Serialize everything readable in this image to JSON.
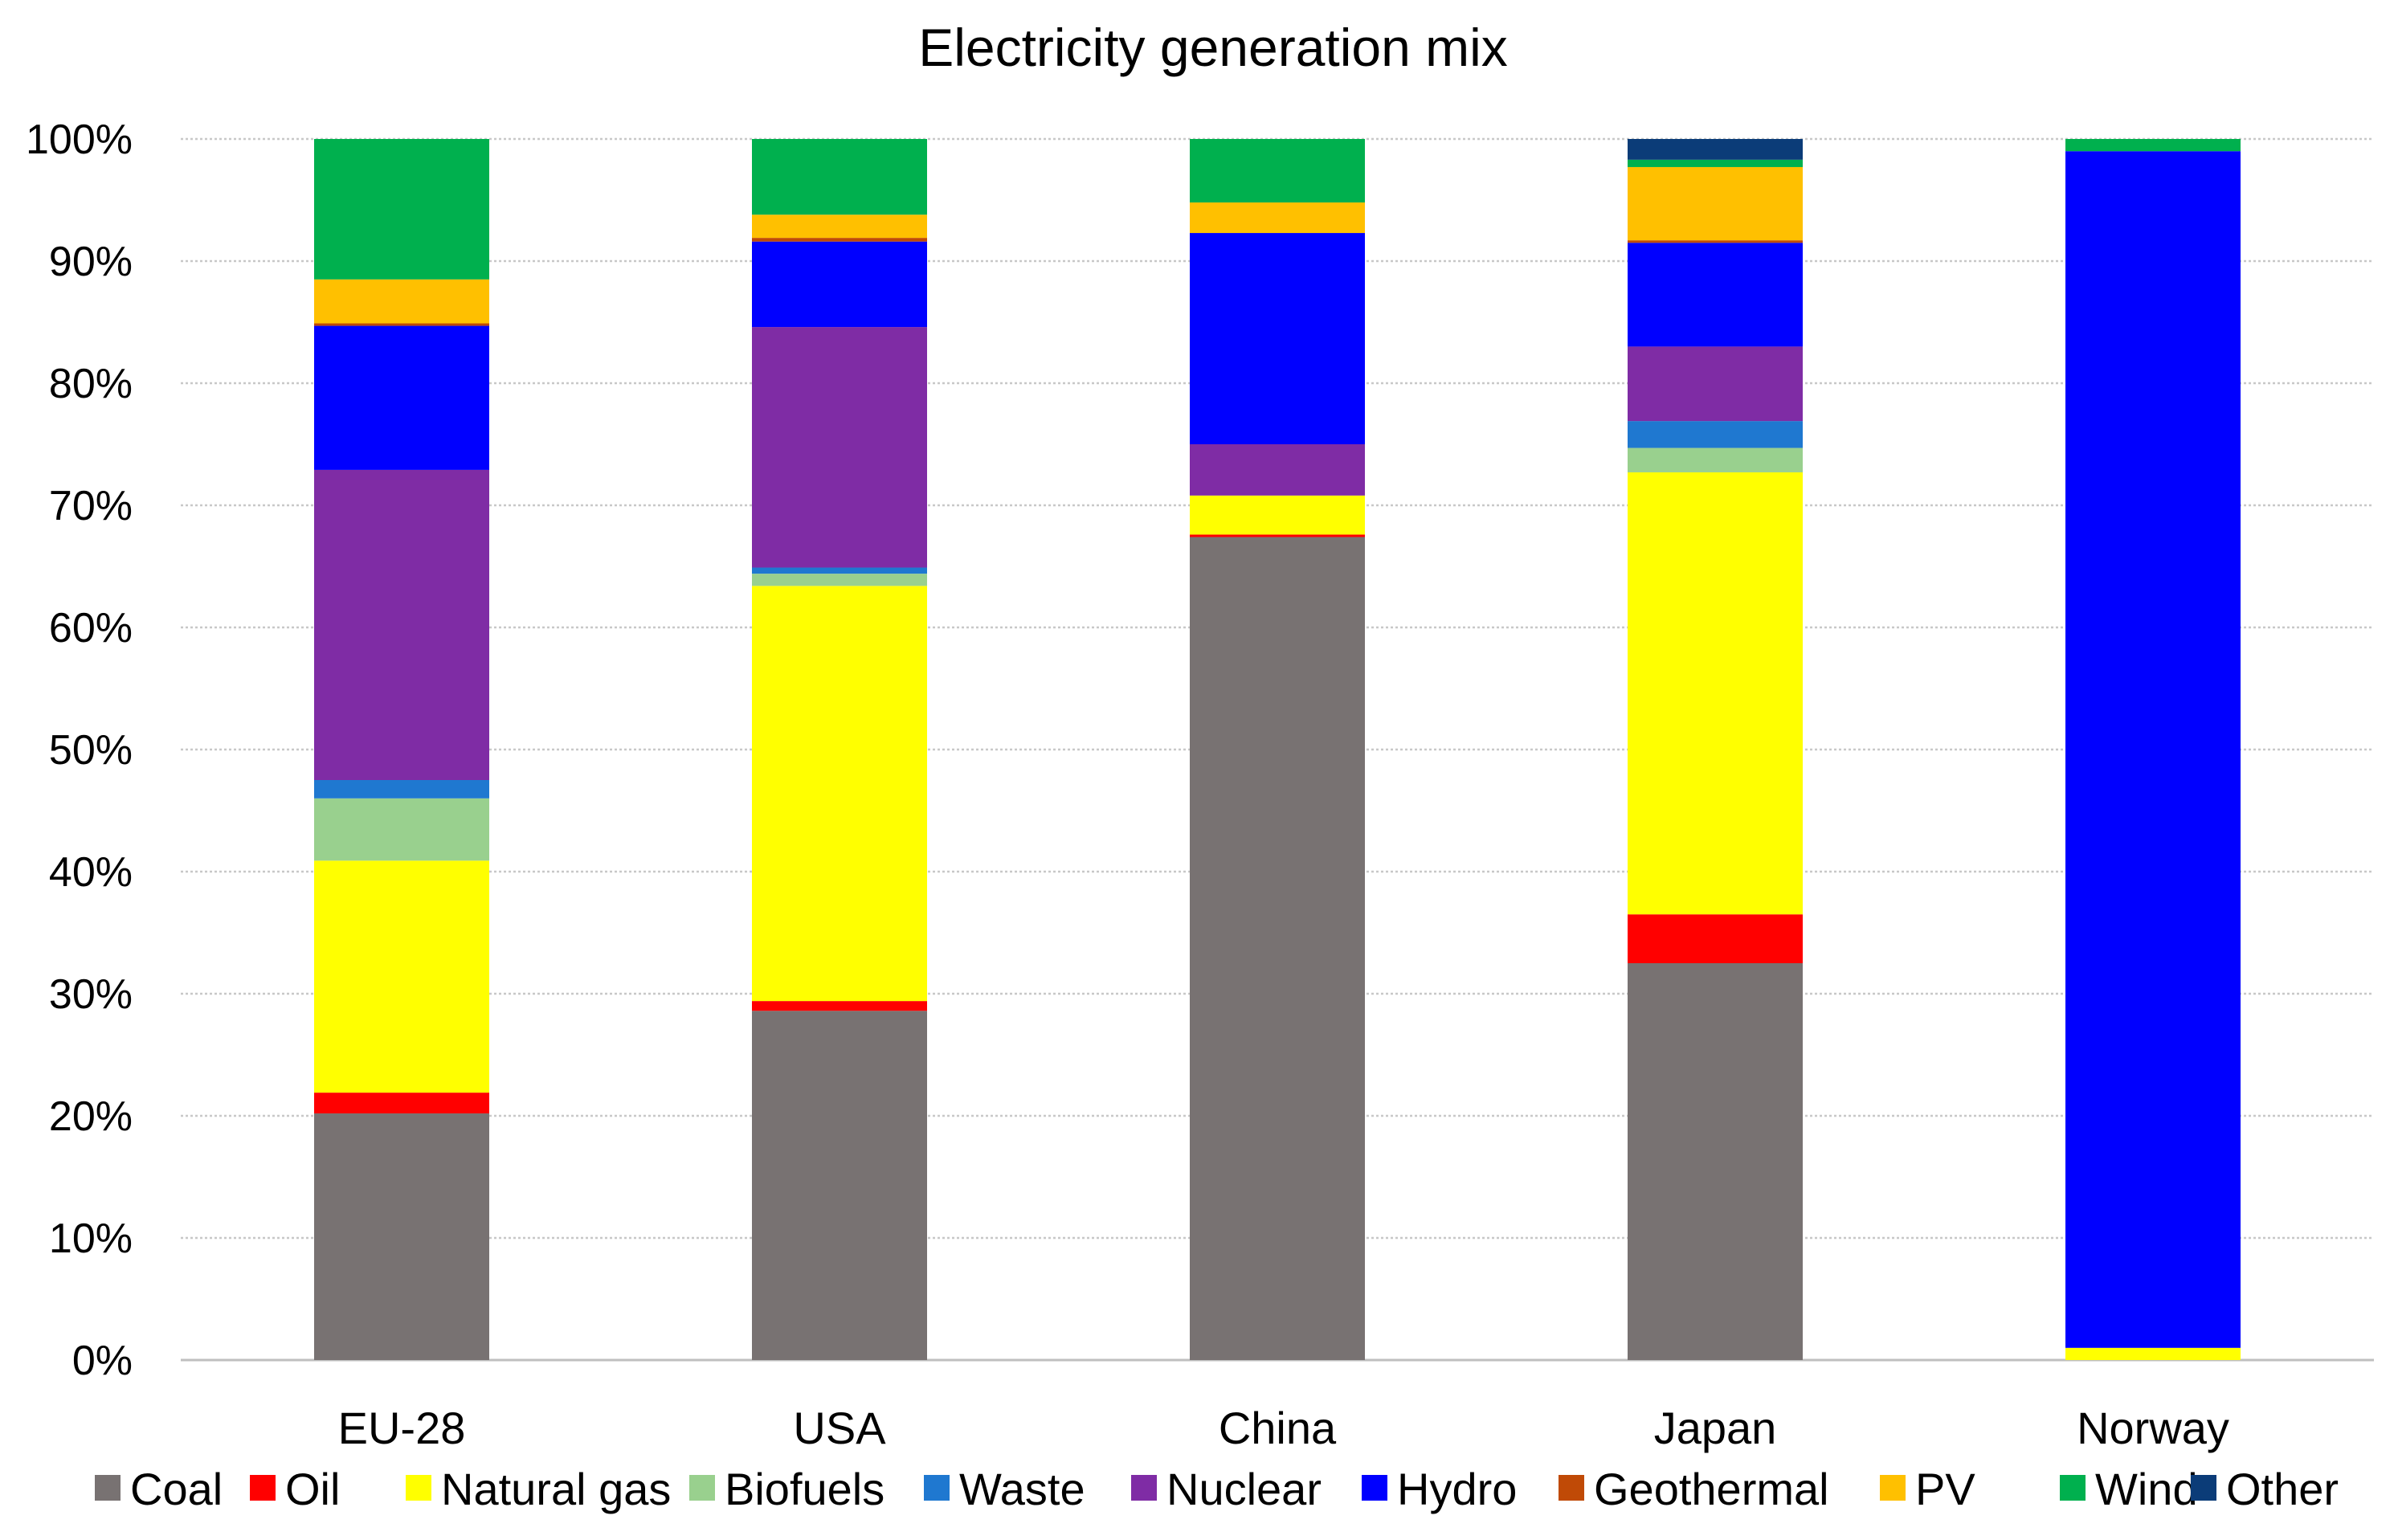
{
  "chart_data": {
    "type": "bar",
    "stacked": true,
    "title": "Electricity generation mix",
    "xlabel": "",
    "ylabel": "",
    "ylim": [
      0,
      100
    ],
    "yticks": [
      0,
      10,
      20,
      30,
      40,
      50,
      60,
      70,
      80,
      90,
      100
    ],
    "ytick_suffix": "%",
    "grid": "horizontal",
    "legend_position": "bottom",
    "categories": [
      "EU-28",
      "USA",
      "China",
      "Japan",
      "Norway"
    ],
    "series": [
      {
        "name": "Coal",
        "color": "#787272",
        "values": [
          20.2,
          28.6,
          67.4,
          32.5,
          0.0
        ]
      },
      {
        "name": "Oil",
        "color": "#ff0000",
        "values": [
          1.7,
          0.8,
          0.2,
          4.0,
          0.0
        ]
      },
      {
        "name": "Natural gas",
        "color": "#ffff00",
        "values": [
          19.0,
          34.0,
          3.2,
          36.2,
          1.0
        ]
      },
      {
        "name": "Biofuels",
        "color": "#99d08e",
        "values": [
          5.1,
          1.0,
          0.0,
          2.0,
          0.0
        ]
      },
      {
        "name": "Waste",
        "color": "#1f78d0",
        "values": [
          1.5,
          0.5,
          0.0,
          2.2,
          0.0
        ]
      },
      {
        "name": "Nuclear",
        "color": "#7f2ca5",
        "values": [
          25.4,
          19.7,
          4.2,
          6.1,
          0.0
        ]
      },
      {
        "name": "Hydro",
        "color": "#0000ff",
        "values": [
          11.8,
          7.0,
          17.3,
          8.5,
          98.0
        ]
      },
      {
        "name": "Geothermal",
        "color": "#c04a06",
        "values": [
          0.2,
          0.3,
          0.0,
          0.2,
          0.0
        ]
      },
      {
        "name": "PV",
        "color": "#ffc000",
        "values": [
          3.6,
          1.9,
          2.5,
          6.0,
          0.0
        ]
      },
      {
        "name": "Wind",
        "color": "#00b04e",
        "values": [
          11.5,
          6.2,
          5.2,
          0.6,
          1.0
        ]
      },
      {
        "name": "Other",
        "color": "#0b3c78",
        "values": [
          0.0,
          0.0,
          0.0,
          1.7,
          0.0
        ]
      }
    ]
  }
}
